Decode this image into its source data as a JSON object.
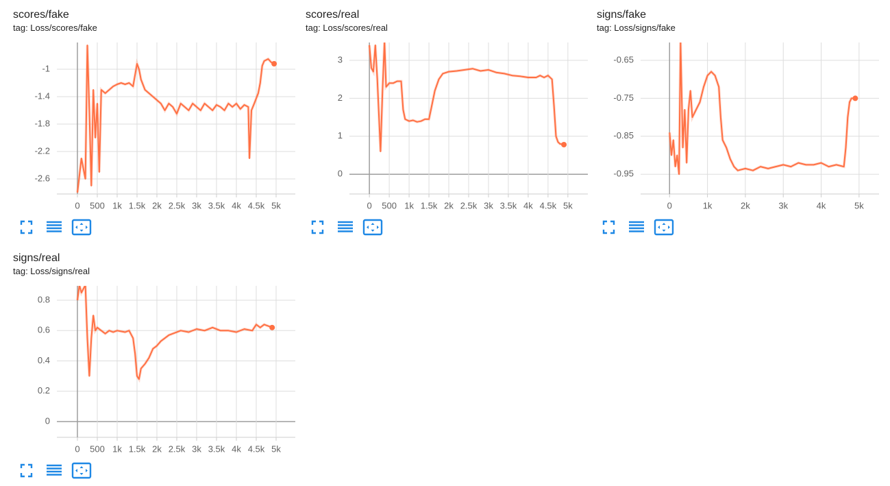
{
  "chart_data": [
    {
      "type": "line",
      "title": "scores/fake",
      "subtitle": "tag: Loss/scores/fake",
      "x": [
        0,
        100,
        200,
        250,
        300,
        350,
        400,
        450,
        500,
        550,
        600,
        700,
        800,
        900,
        1000,
        1100,
        1200,
        1300,
        1400,
        1500,
        1550,
        1600,
        1700,
        1800,
        1900,
        2000,
        2100,
        2200,
        2300,
        2400,
        2500,
        2600,
        2700,
        2800,
        2900,
        3000,
        3100,
        3200,
        3300,
        3400,
        3500,
        3600,
        3700,
        3800,
        3900,
        4000,
        4100,
        4200,
        4300,
        4330,
        4380,
        4450,
        4550,
        4600,
        4650,
        4700,
        4800,
        4880,
        4950
      ],
      "series": [
        {
          "color": "#ff7043",
          "values": [
            -2.8,
            -2.3,
            -2.6,
            -0.65,
            -1.6,
            -2.7,
            -1.3,
            -2.0,
            -1.5,
            -2.5,
            -1.3,
            -1.35,
            -1.3,
            -1.25,
            -1.22,
            -1.2,
            -1.22,
            -1.2,
            -1.25,
            -0.92,
            -1.0,
            -1.15,
            -1.3,
            -1.35,
            -1.4,
            -1.45,
            -1.5,
            -1.6,
            -1.5,
            -1.55,
            -1.65,
            -1.5,
            -1.55,
            -1.6,
            -1.5,
            -1.55,
            -1.6,
            -1.5,
            -1.55,
            -1.6,
            -1.52,
            -1.55,
            -1.6,
            -1.5,
            -1.55,
            -1.5,
            -1.58,
            -1.52,
            -1.55,
            -2.3,
            -1.6,
            -1.5,
            -1.35,
            -1.2,
            -0.95,
            -0.88,
            -0.85,
            -0.9,
            -0.92
          ]
        }
      ],
      "xlim": [
        -517,
        5483
      ],
      "ylim": [
        -2.82,
        -0.61
      ],
      "xticks": [
        0,
        500,
        {
          "value": 1000,
          "label": "1k"
        },
        {
          "value": 1500,
          "label": "1.5k"
        },
        {
          "value": 2000,
          "label": "2k"
        },
        {
          "value": 2500,
          "label": "2.5k"
        },
        {
          "value": 3000,
          "label": "3k"
        },
        {
          "value": 3500,
          "label": "3.5k"
        },
        {
          "value": 4000,
          "label": "4k"
        },
        {
          "value": 4500,
          "label": "4.5k"
        },
        {
          "value": 5000,
          "label": "5k"
        }
      ],
      "yticks": [
        -2.6,
        -2.2,
        -1.8,
        -1.4,
        -1
      ],
      "grid": true
    },
    {
      "type": "line",
      "title": "scores/real",
      "subtitle": "tag: Loss/scores/real",
      "x": [
        0,
        50,
        100,
        150,
        200,
        280,
        330,
        380,
        420,
        500,
        600,
        700,
        800,
        850,
        900,
        1000,
        1100,
        1200,
        1300,
        1400,
        1500,
        1550,
        1650,
        1750,
        1850,
        2000,
        2200,
        2400,
        2600,
        2800,
        3000,
        3200,
        3400,
        3600,
        3800,
        4000,
        4200,
        4300,
        4400,
        4500,
        4600,
        4650,
        4700,
        4750,
        4800,
        4900
      ],
      "series": [
        {
          "color": "#ff7043",
          "values": [
            3.4,
            2.8,
            2.7,
            3.4,
            2.5,
            0.6,
            2.2,
            3.5,
            2.3,
            2.4,
            2.4,
            2.45,
            2.45,
            1.7,
            1.45,
            1.4,
            1.42,
            1.38,
            1.4,
            1.45,
            1.45,
            1.7,
            2.2,
            2.5,
            2.65,
            2.7,
            2.72,
            2.75,
            2.78,
            2.72,
            2.75,
            2.68,
            2.65,
            2.6,
            2.58,
            2.55,
            2.55,
            2.6,
            2.55,
            2.6,
            2.5,
            1.8,
            1.0,
            0.85,
            0.8,
            0.78
          ]
        }
      ],
      "xlim": [
        -503,
        5503
      ],
      "ylim": [
        -0.52,
        3.47
      ],
      "xticks": [
        0,
        500,
        {
          "value": 1000,
          "label": "1k"
        },
        {
          "value": 1500,
          "label": "1.5k"
        },
        {
          "value": 2000,
          "label": "2k"
        },
        {
          "value": 2500,
          "label": "2.5k"
        },
        {
          "value": 3000,
          "label": "3k"
        },
        {
          "value": 3500,
          "label": "3.5k"
        },
        {
          "value": 4000,
          "label": "4k"
        },
        {
          "value": 4500,
          "label": "4.5k"
        },
        {
          "value": 5000,
          "label": "5k"
        }
      ],
      "yticks": [
        0,
        1,
        2,
        3
      ],
      "grid": true
    },
    {
      "type": "line",
      "title": "signs/fake",
      "subtitle": "tag: Loss/signs/fake",
      "x": [
        0,
        50,
        100,
        150,
        200,
        250,
        290,
        350,
        400,
        450,
        500,
        550,
        600,
        700,
        800,
        900,
        1000,
        1100,
        1200,
        1300,
        1350,
        1400,
        1500,
        1600,
        1700,
        1800,
        2000,
        2200,
        2400,
        2600,
        2800,
        3000,
        3200,
        3400,
        3600,
        3800,
        4000,
        4200,
        4400,
        4600,
        4650,
        4700,
        4750,
        4800,
        4900
      ],
      "series": [
        {
          "color": "#ff7043",
          "values": [
            -0.84,
            -0.9,
            -0.86,
            -0.93,
            -0.9,
            -0.95,
            -0.6,
            -0.88,
            -0.78,
            -0.92,
            -0.78,
            -0.73,
            -0.8,
            -0.78,
            -0.76,
            -0.72,
            -0.69,
            -0.68,
            -0.69,
            -0.72,
            -0.8,
            -0.86,
            -0.88,
            -0.91,
            -0.93,
            -0.94,
            -0.935,
            -0.94,
            -0.93,
            -0.935,
            -0.93,
            -0.925,
            -0.93,
            -0.92,
            -0.925,
            -0.925,
            -0.92,
            -0.93,
            -0.925,
            -0.93,
            -0.88,
            -0.8,
            -0.76,
            -0.75,
            -0.75
          ]
        }
      ],
      "xlim": [
        -764,
        5527
      ],
      "ylim": [
        -1.002,
        -0.603
      ],
      "xticks": [
        0,
        {
          "value": 1000,
          "label": "1k"
        },
        {
          "value": 2000,
          "label": "2k"
        },
        {
          "value": 3000,
          "label": "3k"
        },
        {
          "value": 4000,
          "label": "4k"
        },
        {
          "value": 5000,
          "label": "5k"
        }
      ],
      "yticks": [
        -0.95,
        -0.85,
        -0.75,
        -0.65
      ],
      "grid": true
    },
    {
      "type": "line",
      "title": "signs/real",
      "subtitle": "tag: Loss/signs/real",
      "x": [
        0,
        50,
        100,
        200,
        250,
        300,
        350,
        400,
        450,
        500,
        600,
        700,
        800,
        900,
        1000,
        1200,
        1300,
        1400,
        1450,
        1500,
        1550,
        1600,
        1700,
        1800,
        1900,
        2000,
        2100,
        2200,
        2300,
        2400,
        2600,
        2800,
        3000,
        3200,
        3400,
        3600,
        3800,
        4000,
        4200,
        4400,
        4500,
        4600,
        4700,
        4800,
        4900
      ],
      "series": [
        {
          "color": "#ff7043",
          "values": [
            0.8,
            0.9,
            0.85,
            0.9,
            0.55,
            0.3,
            0.55,
            0.7,
            0.6,
            0.62,
            0.6,
            0.58,
            0.6,
            0.59,
            0.6,
            0.59,
            0.6,
            0.55,
            0.45,
            0.3,
            0.28,
            0.35,
            0.38,
            0.42,
            0.48,
            0.5,
            0.53,
            0.55,
            0.57,
            0.58,
            0.6,
            0.59,
            0.61,
            0.6,
            0.62,
            0.6,
            0.6,
            0.59,
            0.61,
            0.6,
            0.64,
            0.62,
            0.64,
            0.63,
            0.62
          ]
        }
      ],
      "xlim": [
        -517,
        5483
      ],
      "ylim": [
        -0.104,
        0.895
      ],
      "xticks": [
        0,
        500,
        {
          "value": 1000,
          "label": "1k"
        },
        {
          "value": 1500,
          "label": "1.5k"
        },
        {
          "value": 2000,
          "label": "2k"
        },
        {
          "value": 2500,
          "label": "2.5k"
        },
        {
          "value": 3000,
          "label": "3k"
        },
        {
          "value": 3500,
          "label": "3.5k"
        },
        {
          "value": 4000,
          "label": "4k"
        },
        {
          "value": 4500,
          "label": "4.5k"
        },
        {
          "value": 5000,
          "label": "5k"
        }
      ],
      "yticks": [
        0,
        0.2,
        0.4,
        0.6,
        0.8
      ],
      "grid": true
    }
  ]
}
